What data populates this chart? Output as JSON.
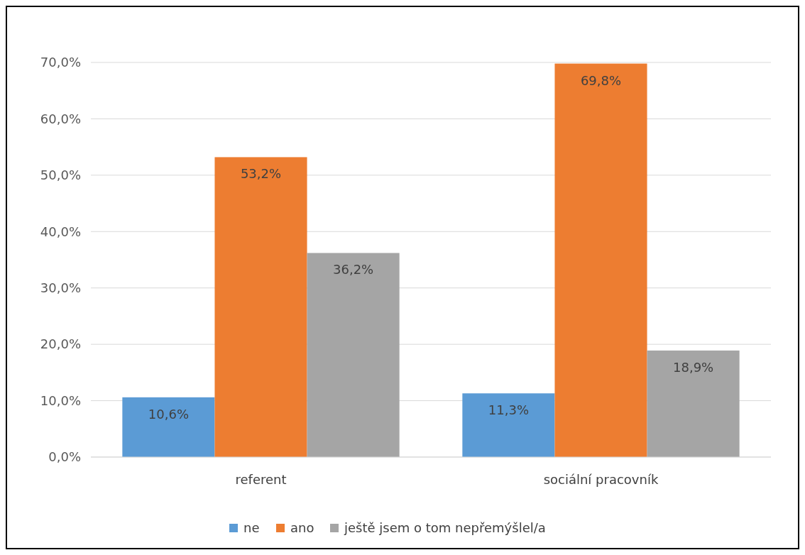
{
  "chart_data": {
    "type": "bar",
    "categories": [
      "referent",
      "sociální pracovník"
    ],
    "series": [
      {
        "name": "ne",
        "color": "#5b9bd5",
        "values": [
          10.6,
          11.3
        ],
        "value_labels": [
          "10,6%",
          "11,3%"
        ]
      },
      {
        "name": "ano",
        "color": "#ed7d31",
        "values": [
          53.2,
          69.8
        ],
        "value_labels": [
          "53,2%",
          "69,8%"
        ]
      },
      {
        "name": "ještě jsem o tom nepřemýšlel/a",
        "color": "#a5a5a5",
        "values": [
          36.2,
          18.9
        ],
        "value_labels": [
          "36,2%",
          "18,9%"
        ]
      }
    ],
    "ylim": [
      0,
      70
    ],
    "yticks": [
      {
        "value": 0,
        "label": "0,0%"
      },
      {
        "value": 10,
        "label": "10,0%"
      },
      {
        "value": 20,
        "label": "20,0%"
      },
      {
        "value": 30,
        "label": "30,0%"
      },
      {
        "value": 40,
        "label": "40,0%"
      },
      {
        "value": 50,
        "label": "50,0%"
      },
      {
        "value": 60,
        "label": "60,0%"
      },
      {
        "value": 70,
        "label": "70,0%"
      }
    ],
    "grid": "y",
    "legend": "bottom"
  }
}
